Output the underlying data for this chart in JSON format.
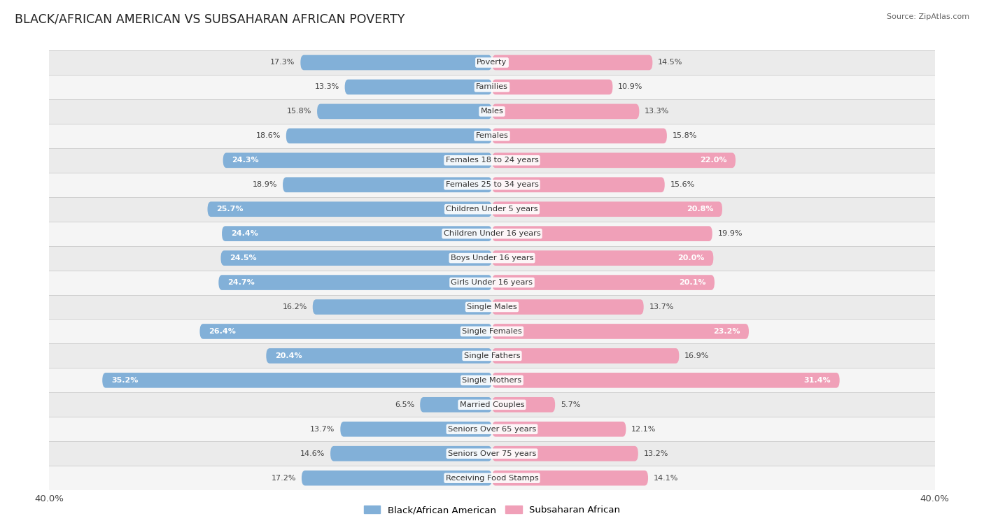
{
  "title": "BLACK/AFRICAN AMERICAN VS SUBSAHARAN AFRICAN POVERTY",
  "source": "Source: ZipAtlas.com",
  "categories": [
    "Poverty",
    "Families",
    "Males",
    "Females",
    "Females 18 to 24 years",
    "Females 25 to 34 years",
    "Children Under 5 years",
    "Children Under 16 years",
    "Boys Under 16 years",
    "Girls Under 16 years",
    "Single Males",
    "Single Females",
    "Single Fathers",
    "Single Mothers",
    "Married Couples",
    "Seniors Over 65 years",
    "Seniors Over 75 years",
    "Receiving Food Stamps"
  ],
  "left_values": [
    17.3,
    13.3,
    15.8,
    18.6,
    24.3,
    18.9,
    25.7,
    24.4,
    24.5,
    24.7,
    16.2,
    26.4,
    20.4,
    35.2,
    6.5,
    13.7,
    14.6,
    17.2
  ],
  "right_values": [
    14.5,
    10.9,
    13.3,
    15.8,
    22.0,
    15.6,
    20.8,
    19.9,
    20.0,
    20.1,
    13.7,
    23.2,
    16.9,
    31.4,
    5.7,
    12.1,
    13.2,
    14.1
  ],
  "left_color": "#82b0d8",
  "right_color": "#f0a0b8",
  "row_even_color": "#ebebeb",
  "row_odd_color": "#f5f5f5",
  "axis_max": 40.0,
  "left_label": "Black/African American",
  "right_label": "Subsaharan African",
  "value_fontsize": 8.0,
  "category_fontsize": 8.2,
  "title_fontsize": 12.5,
  "source_fontsize": 8.0,
  "legend_fontsize": 9.5,
  "bar_height": 0.62,
  "inside_label_threshold": 20.0
}
